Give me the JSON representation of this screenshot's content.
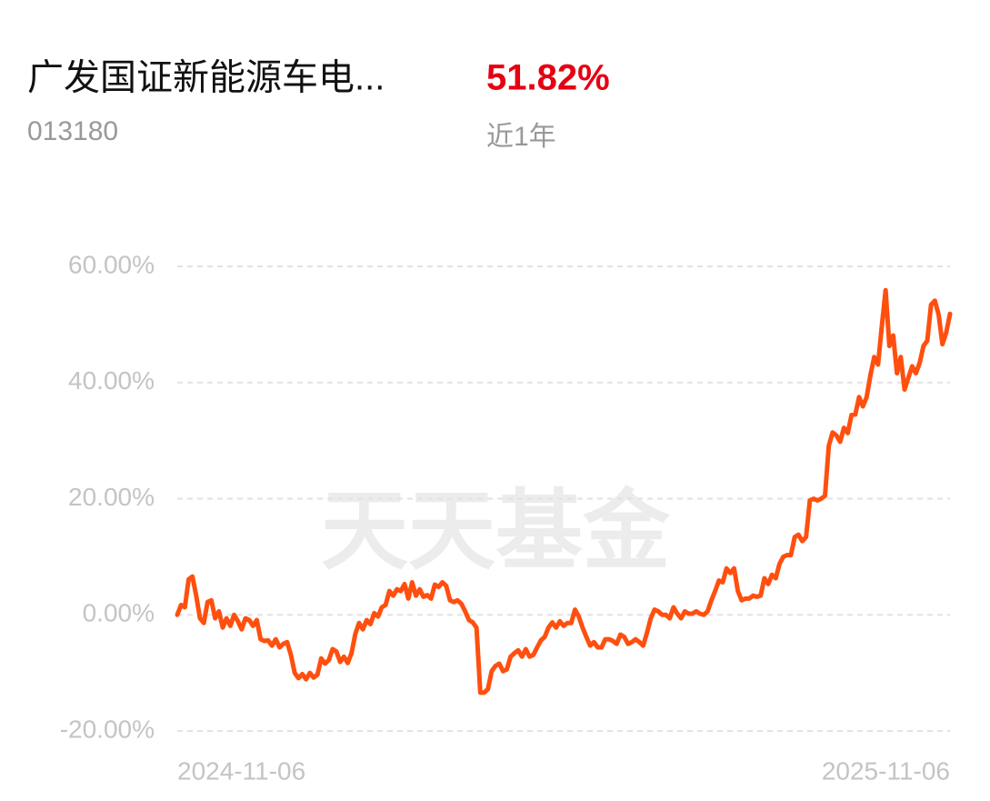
{
  "header": {
    "fund_name": "广发国证新能源车电...",
    "return_label": "51.82%",
    "code": "013180",
    "period": "近1年"
  },
  "chart_data": {
    "type": "line",
    "watermark": "天天基金",
    "color": "#ff4f0f",
    "grid": true,
    "ylim": [
      -20,
      60
    ],
    "yticks": [
      {
        "value": -20,
        "label": "-20.00%"
      },
      {
        "value": 0,
        "label": "0.00%"
      },
      {
        "value": 20,
        "label": "20.00%"
      },
      {
        "value": 40,
        "label": "40.00%"
      },
      {
        "value": 60,
        "label": "60.00%"
      }
    ],
    "categories": [
      "2024-11-06",
      null,
      null,
      null,
      null,
      null,
      null,
      null,
      null,
      null,
      null,
      null,
      null,
      null,
      null,
      null,
      null,
      null,
      null,
      null,
      null,
      null,
      null,
      null,
      null,
      null,
      null,
      null,
      null,
      null,
      null,
      null,
      null,
      null,
      null,
      null,
      null,
      null,
      null,
      null,
      null,
      null,
      null,
      null,
      null,
      null,
      null,
      null,
      null,
      null,
      null,
      null,
      null,
      null,
      null,
      null,
      null,
      null,
      null,
      null,
      null,
      null,
      null,
      null,
      null,
      null,
      null,
      null,
      null,
      null,
      null,
      null,
      null,
      null,
      null,
      null,
      null,
      null,
      null,
      null,
      null,
      null,
      null,
      null,
      null,
      null,
      null,
      null,
      null,
      null,
      null,
      null,
      null,
      null,
      null,
      null,
      null,
      null,
      null,
      null,
      null,
      null,
      null,
      null,
      null,
      null,
      null,
      null,
      null,
      null,
      null,
      null,
      null,
      null,
      null,
      null,
      null,
      null,
      null,
      null,
      null,
      null,
      null,
      null,
      null,
      null,
      null,
      null,
      null,
      null,
      null,
      null,
      null,
      null,
      null,
      null,
      null,
      null,
      null,
      null,
      null,
      null,
      null,
      null,
      null,
      null,
      null,
      null,
      null,
      null,
      null,
      null,
      null,
      null,
      null,
      null,
      null,
      null,
      null,
      null,
      null,
      null,
      null,
      null,
      null,
      null,
      null,
      null,
      null,
      null,
      null,
      null,
      null,
      null,
      null,
      null,
      null,
      null,
      null,
      null,
      null,
      null,
      null,
      null,
      null,
      null,
      null,
      null,
      null,
      null,
      null,
      null,
      null,
      null,
      null,
      null,
      null,
      null,
      null,
      null,
      null,
      null,
      null,
      null,
      "2025-11-06"
    ],
    "values": [
      0,
      1.7,
      1.3,
      6.1,
      6.6,
      3.3,
      -0.6,
      -1.4,
      2.2,
      2.5,
      -0.6,
      0.6,
      -2.2,
      -0.6,
      -1.9,
      0,
      -1.1,
      -2.5,
      -0.6,
      -0.9,
      -1.9,
      -0.9,
      -4.2,
      -4.5,
      -4.4,
      -5.3,
      -4.2,
      -5.6,
      -5.0,
      -4.7,
      -6.9,
      -10.0,
      -10.9,
      -10.2,
      -11.1,
      -10.0,
      -10.8,
      -10.3,
      -7.5,
      -8.4,
      -7.8,
      -5.9,
      -6.3,
      -8.1,
      -7.2,
      -8.3,
      -6.6,
      -3.3,
      -1.4,
      -2.5,
      -0.9,
      -1.6,
      0.3,
      -0.3,
      1.3,
      1.7,
      4.1,
      3.3,
      4.4,
      4.1,
      5.3,
      2.8,
      5.6,
      3.3,
      4.4,
      3.1,
      3.4,
      2.8,
      5.2,
      4.8,
      5.6,
      5.0,
      2.5,
      2.2,
      2.5,
      1.9,
      0.6,
      -0.9,
      -1.3,
      -2.2,
      -13.4,
      -13.4,
      -12.8,
      -9.7,
      -8.8,
      -8.4,
      -9.7,
      -9.4,
      -7.2,
      -6.6,
      -6.1,
      -7.2,
      -5.9,
      -7.2,
      -6.9,
      -5.6,
      -4.4,
      -3.8,
      -2.2,
      -1.3,
      -2.2,
      -1.1,
      -1.9,
      -1.4,
      -1.4,
      0.9,
      -0.3,
      -2.2,
      -3.8,
      -5.3,
      -4.7,
      -5.6,
      -5.6,
      -4.2,
      -4.2,
      -4.5,
      -5.0,
      -3.4,
      -3.8,
      -5.0,
      -4.7,
      -4.2,
      -4.7,
      -5.3,
      -3.1,
      -0.6,
      0.9,
      0.6,
      0,
      0,
      -0.6,
      1.3,
      0.2,
      -0.6,
      0.6,
      0.2,
      0.2,
      0.6,
      0.2,
      0,
      0.6,
      2.5,
      4.1,
      5.9,
      5.6,
      8.0,
      7.2,
      8.0,
      4.1,
      2.5,
      2.8,
      2.8,
      3.3,
      3.1,
      3.3,
      6.3,
      5.3,
      6.9,
      6.3,
      8.8,
      10.0,
      10.3,
      10.3,
      13.4,
      13.8,
      12.7,
      13.4,
      19.7,
      20.0,
      19.7,
      20.0,
      20.5,
      29.1,
      31.4,
      30.9,
      29.8,
      32.2,
      31.3,
      34.4,
      34.5,
      37.5,
      35.9,
      37.5,
      41.3,
      44.4,
      43.1,
      49.7,
      55.9,
      46.3,
      48.1,
      41.6,
      44.4,
      38.8,
      40.8,
      42.8,
      41.6,
      43.4,
      46.3,
      47.2,
      53.4,
      54.1,
      51.7,
      46.6,
      48.6,
      51.82
    ]
  }
}
